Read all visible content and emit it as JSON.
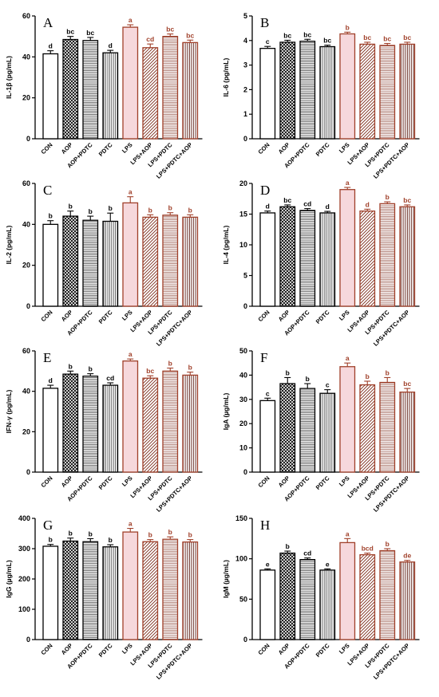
{
  "categories": [
    "CON",
    "AOP",
    "AOP+PDTC",
    "PDTC",
    "LPS",
    "LPS+AOP",
    "LPS+PDTC",
    "LPS+PDTC+AOP"
  ],
  "colors": {
    "ink": "#000000",
    "lps_group": "#a0402a",
    "lps_fill": "#f6d8dc",
    "pattern_bg": "#ffffff"
  },
  "chart_data": [
    {
      "type": "bar",
      "panel": "A",
      "ylabel": "IL-1β (pg/mL)",
      "ylim": [
        0,
        60
      ],
      "yticks": [
        0,
        20,
        40,
        60
      ],
      "values": [
        41.5,
        48.5,
        48,
        42,
        54.5,
        44.5,
        50,
        47
      ],
      "errors": [
        1.5,
        1.5,
        1.5,
        1.2,
        1.2,
        1.8,
        1.2,
        1.2
      ],
      "labels": [
        "d",
        "bc",
        "bc",
        "d",
        "a",
        "cd",
        "bc",
        "bc"
      ]
    },
    {
      "type": "bar",
      "panel": "B",
      "ylabel": "IL-6 (pg/mL)",
      "ylim": [
        0,
        5
      ],
      "yticks": [
        0,
        1,
        2,
        3,
        4,
        5
      ],
      "values": [
        3.68,
        3.93,
        3.97,
        3.75,
        4.27,
        3.85,
        3.8,
        3.85
      ],
      "errors": [
        0.08,
        0.08,
        0.08,
        0.06,
        0.07,
        0.08,
        0.08,
        0.08
      ],
      "labels": [
        "c",
        "bc",
        "bc",
        "bc",
        "b",
        "bc",
        "bc",
        "bc"
      ]
    },
    {
      "type": "bar",
      "panel": "C",
      "ylabel": "IL-2 (pg/mL)",
      "ylim": [
        0,
        60
      ],
      "yticks": [
        0,
        20,
        40,
        60
      ],
      "values": [
        40,
        44,
        42,
        41.5,
        50.5,
        43.5,
        44.5,
        43.5
      ],
      "errors": [
        1.8,
        2.5,
        2.0,
        4.0,
        3.0,
        1.2,
        1.2,
        1.2
      ],
      "labels": [
        "b",
        "b",
        "b",
        "b",
        "a",
        "b",
        "b",
        "b"
      ]
    },
    {
      "type": "bar",
      "panel": "D",
      "ylabel": "IL-4 (pg/mL)",
      "ylim": [
        0,
        20
      ],
      "yticks": [
        0,
        5,
        10,
        15,
        20
      ],
      "values": [
        15.2,
        16.2,
        15.6,
        15.2,
        19,
        15.5,
        16.7,
        16.2
      ],
      "errors": [
        0.3,
        0.3,
        0.3,
        0.25,
        0.35,
        0.3,
        0.3,
        0.3
      ],
      "labels": [
        "d",
        "bc",
        "cd",
        "d",
        "a",
        "d",
        "b",
        "bc"
      ]
    },
    {
      "type": "bar",
      "panel": "E",
      "ylabel": "IFN-γ (pg/mL)",
      "ylim": [
        0,
        60
      ],
      "yticks": [
        0,
        20,
        40,
        60
      ],
      "values": [
        41.5,
        48.5,
        47.5,
        43,
        55,
        46.5,
        50,
        48
      ],
      "errors": [
        1.5,
        1.5,
        1.2,
        1.2,
        1.0,
        1.2,
        1.5,
        1.5
      ],
      "labels": [
        "d",
        "b",
        "b",
        "cd",
        "a",
        "bc",
        "b",
        "b"
      ]
    },
    {
      "type": "bar",
      "panel": "F",
      "ylabel": "IgA (µg/mL)",
      "ylim": [
        0,
        50
      ],
      "yticks": [
        0,
        10,
        20,
        30,
        40,
        50
      ],
      "values": [
        29.5,
        36.5,
        34.5,
        32.5,
        43.5,
        36,
        37,
        33
      ],
      "errors": [
        1.0,
        2.5,
        2.0,
        1.5,
        1.5,
        1.5,
        2.0,
        1.5
      ],
      "labels": [
        "c",
        "b",
        "b",
        "c",
        "a",
        "b",
        "b",
        "bc"
      ]
    },
    {
      "type": "bar",
      "panel": "G",
      "ylabel": "IgG (µg/mL)",
      "ylim": [
        0,
        400
      ],
      "yticks": [
        0,
        100,
        200,
        300,
        400
      ],
      "values": [
        308,
        325,
        323,
        306,
        355,
        323,
        331,
        322
      ],
      "errors": [
        6,
        10,
        10,
        7,
        12,
        7,
        8,
        8
      ],
      "labels": [
        "b",
        "b",
        "b",
        "b",
        "a",
        "b",
        "b",
        "b"
      ]
    },
    {
      "type": "bar",
      "panel": "H",
      "ylabel": "IgM (µg/mL)",
      "ylim": [
        0,
        150
      ],
      "yticks": [
        0,
        50,
        100,
        150
      ],
      "values": [
        86,
        107,
        99,
        86,
        120,
        105,
        110,
        96
      ],
      "errors": [
        1.5,
        2.5,
        2.0,
        1.5,
        5.0,
        2.0,
        2.5,
        2.0
      ],
      "labels": [
        "e",
        "b",
        "cd",
        "e",
        "a",
        "bcd",
        "b",
        "de"
      ]
    }
  ]
}
